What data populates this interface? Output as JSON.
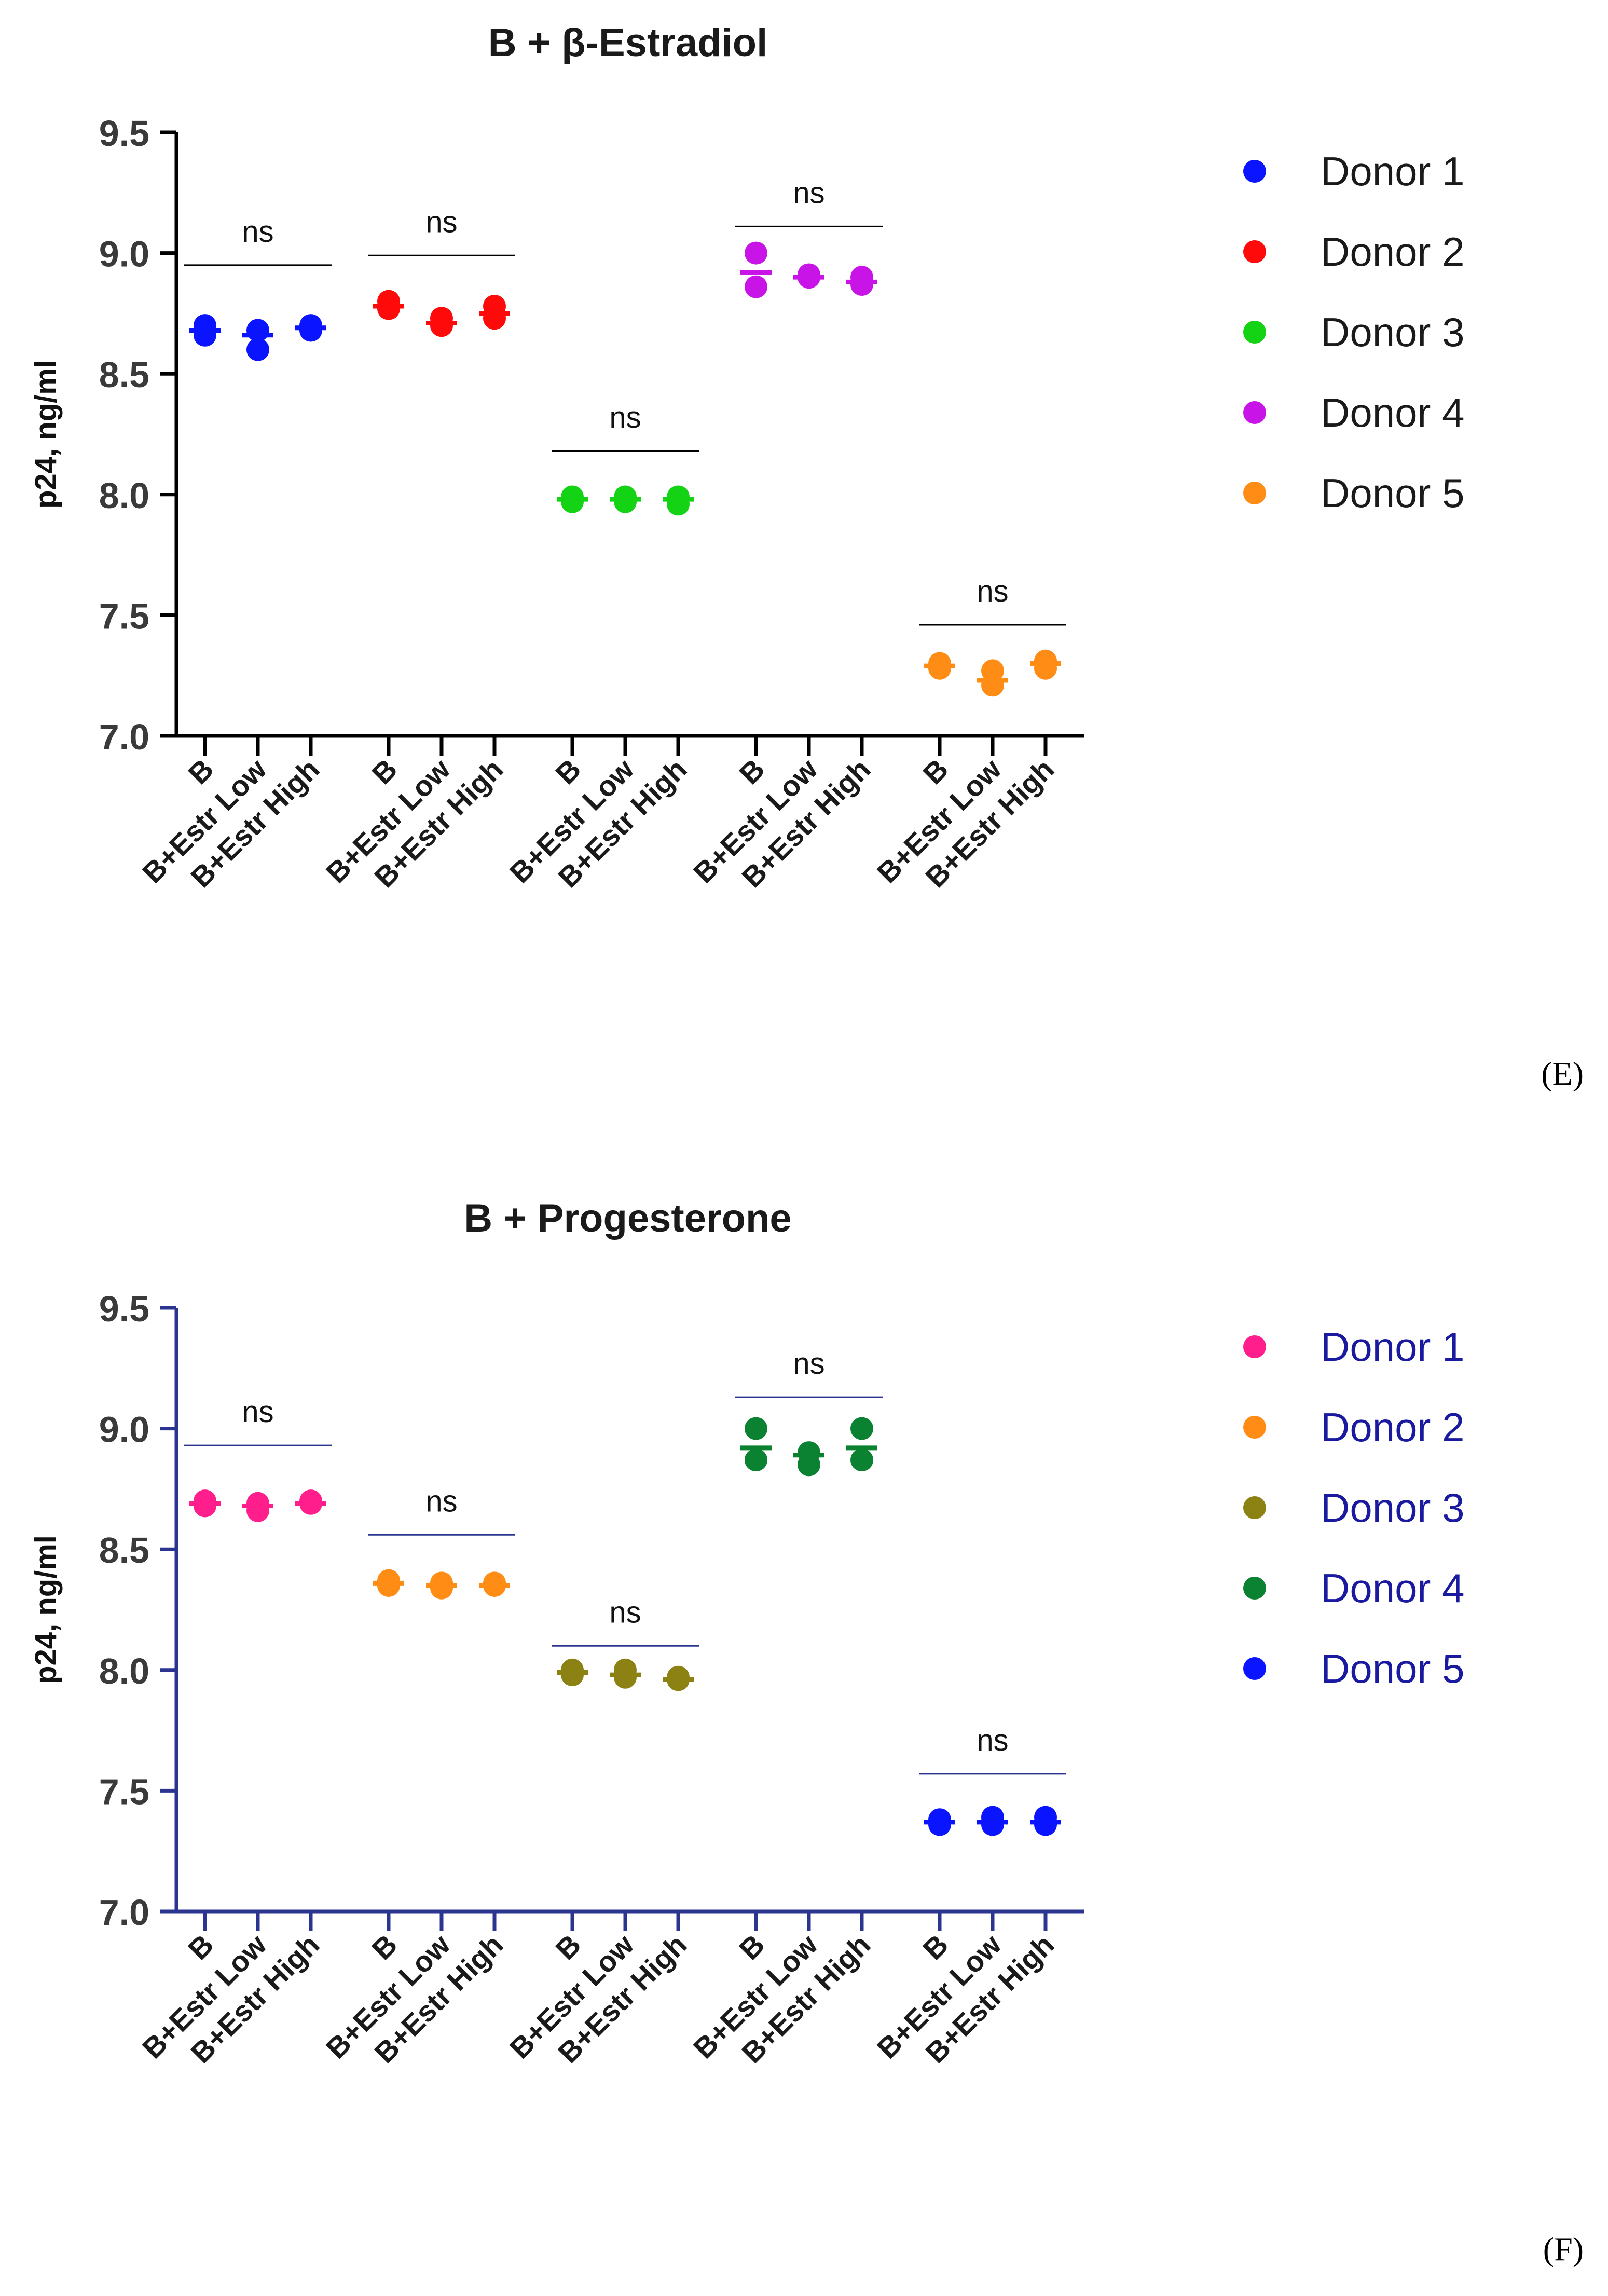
{
  "chart_data": [
    {
      "type": "scatter",
      "title": "B + β-Estradiol",
      "panel_label": "(E)",
      "xlabel": "",
      "ylabel": "p24, ng/ml",
      "ylim": [
        7.0,
        9.5
      ],
      "yticks": [
        "7.0",
        "7.5",
        "8.0",
        "8.5",
        "9.0",
        "9.5"
      ],
      "axis_color": "#000000",
      "legend_text_color": "#1a1a1a",
      "legend_position": "right",
      "categories": [
        "B",
        "B+Estr Low",
        "B+Estr High"
      ],
      "significance": "ns",
      "series": [
        {
          "name": "Donor 1",
          "color": "#0a14ff",
          "points": [
            [
              8.7,
              8.66
            ],
            [
              8.68,
              8.6
            ],
            [
              8.7,
              8.68
            ]
          ],
          "means": [
            8.68,
            8.66,
            8.69
          ],
          "sig_y": 8.95
        },
        {
          "name": "Donor 2",
          "color": "#ff0a0a",
          "points": [
            [
              8.8,
              8.77
            ],
            [
              8.73,
              8.7
            ],
            [
              8.78,
              8.73
            ]
          ],
          "means": [
            8.78,
            8.71,
            8.75
          ],
          "sig_y": 8.99
        },
        {
          "name": "Donor 3",
          "color": "#14d214",
          "points": [
            [
              7.99,
              7.97
            ],
            [
              7.99,
              7.97
            ],
            [
              7.99,
              7.96
            ]
          ],
          "means": [
            7.98,
            7.98,
            7.98
          ],
          "sig_y": 8.18
        },
        {
          "name": "Donor 4",
          "color": "#c814e6",
          "points": [
            [
              9.0,
              8.86
            ],
            [
              8.91,
              8.9
            ],
            [
              8.9,
              8.87
            ]
          ],
          "means": [
            8.92,
            8.9,
            8.88
          ],
          "sig_y": 9.11
        },
        {
          "name": "Donor 5",
          "color": "#ff8c14",
          "points": [
            [
              7.3,
              7.28
            ],
            [
              7.27,
              7.21
            ],
            [
              7.31,
              7.28
            ]
          ],
          "means": [
            7.29,
            7.23,
            7.3
          ],
          "sig_y": 7.46
        }
      ]
    },
    {
      "type": "scatter",
      "title": "B + Progesterone",
      "panel_label": "(F)",
      "xlabel": "",
      "ylabel": "p24, ng/ml",
      "ylim": [
        7.0,
        9.5
      ],
      "yticks": [
        "7.0",
        "7.5",
        "8.0",
        "8.5",
        "9.0",
        "9.5"
      ],
      "axis_color": "#2b3590",
      "legend_text_color": "#1a1aa0",
      "legend_position": "right",
      "categories": [
        "B",
        "B+Estr Low",
        "B+Estr High"
      ],
      "significance": "ns",
      "series": [
        {
          "name": "Donor 1",
          "color": "#ff1e8c",
          "points": [
            [
              8.7,
              8.68
            ],
            [
              8.69,
              8.66
            ],
            [
              8.7,
              8.69
            ]
          ],
          "means": [
            8.69,
            8.68,
            8.69
          ],
          "sig_y": 8.93
        },
        {
          "name": "Donor 2",
          "color": "#ff8c14",
          "points": [
            [
              8.37,
              8.35
            ],
            [
              8.36,
              8.34
            ],
            [
              8.36,
              8.35
            ]
          ],
          "means": [
            8.36,
            8.35,
            8.35
          ],
          "sig_y": 8.56
        },
        {
          "name": "Donor 3",
          "color": "#8c8214",
          "points": [
            [
              8.0,
              7.98
            ],
            [
              8.0,
              7.97
            ],
            [
              7.97,
              7.96
            ]
          ],
          "means": [
            7.99,
            7.98,
            7.96
          ],
          "sig_y": 8.1
        },
        {
          "name": "Donor 4",
          "color": "#0a8232",
          "points": [
            [
              9.0,
              8.87
            ],
            [
              8.9,
              8.85
            ],
            [
              9.0,
              8.87
            ]
          ],
          "means": [
            8.92,
            8.89,
            8.92
          ],
          "sig_y": 9.13
        },
        {
          "name": "Donor 5",
          "color": "#0a14ff",
          "points": [
            [
              7.38,
              7.36
            ],
            [
              7.39,
              7.36
            ],
            [
              7.39,
              7.36
            ]
          ],
          "means": [
            7.37,
            7.37,
            7.37
          ],
          "sig_y": 7.57
        }
      ]
    }
  ]
}
